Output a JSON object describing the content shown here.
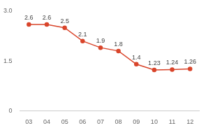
{
  "chart_data": {
    "type": "line",
    "categories": [
      "03",
      "04",
      "05",
      "06",
      "07",
      "08",
      "09",
      "10",
      "11",
      "12"
    ],
    "values": [
      2.6,
      2.6,
      2.5,
      2.1,
      1.9,
      1.8,
      1.4,
      1.23,
      1.24,
      1.26
    ],
    "color": "#d9452b",
    "marker": "circle",
    "ylim": [
      0,
      3
    ],
    "yticks": [
      0,
      1.5,
      {
        "value": 3,
        "label": "3.0"
      }
    ],
    "grid": false,
    "data_labels": true
  }
}
